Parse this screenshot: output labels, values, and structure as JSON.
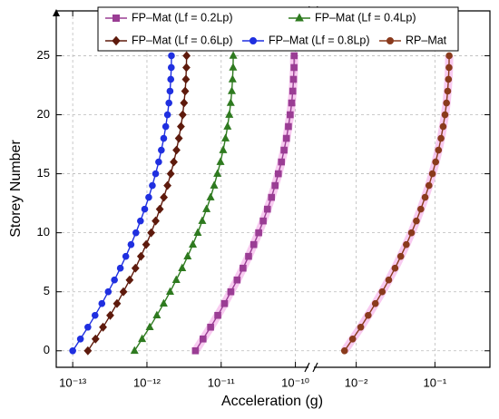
{
  "chart_data": {
    "type": "line",
    "xlabel": "Acceleration (g)",
    "ylabel": "Storey Number",
    "xscale": "log",
    "grid": true,
    "legend": "top",
    "xlim": [
      6e-14,
      0.5
    ],
    "xbreak": [
      1.5e-10,
      0.0029
    ],
    "ylim": [
      -1.4,
      28.8
    ],
    "xticks": [
      {
        "value": 1e-13,
        "label": "10⁻¹³"
      },
      {
        "value": 1e-12,
        "label": "10⁻¹²"
      },
      {
        "value": 1e-11,
        "label": "10⁻¹¹"
      },
      {
        "value": 1e-10,
        "label": "10⁻¹⁰"
      },
      {
        "value": 0.01,
        "label": "10⁻²"
      },
      {
        "value": 0.1,
        "label": "10⁻¹"
      }
    ],
    "yticks": [
      0,
      5,
      10,
      15,
      20,
      25
    ],
    "y": [
      0,
      1,
      2,
      3,
      4,
      5,
      6,
      7,
      8,
      9,
      10,
      11,
      12,
      13,
      14,
      15,
      16,
      17,
      18,
      19,
      20,
      21,
      22,
      23,
      24,
      25
    ],
    "series": [
      {
        "name": "FP–Mat (Lf = 0.2Lp)",
        "color": "#9a3d94",
        "glow": "#f3a6e6",
        "marker": "square",
        "values": [
          4.5e-12,
          5.7e-12,
          7.2e-12,
          9e-12,
          1.11e-11,
          1.35e-11,
          1.64e-11,
          1.97e-11,
          2.34e-11,
          2.75e-11,
          3.2e-11,
          3.68e-11,
          4.2e-11,
          4.76e-11,
          5.32e-11,
          5.89e-11,
          6.48e-11,
          7.03e-11,
          7.57e-11,
          8.06e-11,
          8.51e-11,
          8.9e-11,
          9.21e-11,
          9.42e-11,
          9.58e-11,
          9.62e-11
        ]
      },
      {
        "name": "FP–Mat (Lf = 0.4Lp)",
        "color": "#2e7a1f",
        "marker": "triangle",
        "values": [
          6.8e-13,
          8.6e-13,
          1.09e-12,
          1.36e-12,
          1.68e-12,
          2.05e-12,
          2.48e-12,
          2.98e-12,
          3.53e-12,
          4.15e-12,
          4.83e-12,
          5.56e-12,
          6.34e-12,
          7.19e-12,
          8.04e-12,
          8.9e-12,
          9.79e-12,
          1.063e-11,
          1.144e-11,
          1.218e-11,
          1.287e-11,
          1.344e-11,
          1.391e-11,
          1.424e-11,
          1.447e-11,
          1.454e-11
        ]
      },
      {
        "name": "FP–Mat (Lf = 0.6Lp)",
        "color": "#5e1a0c",
        "marker": "diamond",
        "values": [
          1.6e-13,
          2.03e-13,
          2.56e-13,
          3.2e-13,
          3.95e-13,
          4.82e-13,
          5.84e-13,
          7e-13,
          8.3e-13,
          9.76e-13,
          1.14e-12,
          1.31e-12,
          1.49e-12,
          1.69e-12,
          1.89e-12,
          2.09e-12,
          2.3e-12,
          2.5e-12,
          2.69e-12,
          2.87e-12,
          3.03e-12,
          3.16e-12,
          3.27e-12,
          3.35e-12,
          3.4e-12,
          3.42e-12
        ]
      },
      {
        "name": "FP–Mat (Lf = 0.8Lp)",
        "color": "#1f2fe0",
        "marker": "circle",
        "values": [
          1e-13,
          1.27e-13,
          1.6e-13,
          2e-13,
          2.47e-13,
          3.01e-13,
          3.65e-13,
          4.38e-13,
          5.19e-13,
          6.1e-13,
          7.1e-13,
          8.18e-13,
          9.33e-13,
          1.057e-12,
          1.183e-12,
          1.309e-12,
          1.439e-12,
          1.563e-12,
          1.683e-12,
          1.791e-12,
          1.892e-12,
          1.977e-12,
          2.046e-12,
          2.094e-12,
          2.128e-12,
          2.138e-12
        ]
      },
      {
        "name": "RP–Mat",
        "color": "#8a3a1c",
        "glow": "#f3a6e6",
        "marker": "circle",
        "values": [
          0.0071,
          0.009,
          0.0114,
          0.0142,
          0.0175,
          0.0214,
          0.0259,
          0.0311,
          0.0368,
          0.0433,
          0.0504,
          0.0581,
          0.0662,
          0.075,
          0.084,
          0.0929,
          0.1022,
          0.111,
          0.1195,
          0.1272,
          0.1343,
          0.1404,
          0.1453,
          0.1487,
          0.1511,
          0.1518
        ]
      }
    ]
  }
}
